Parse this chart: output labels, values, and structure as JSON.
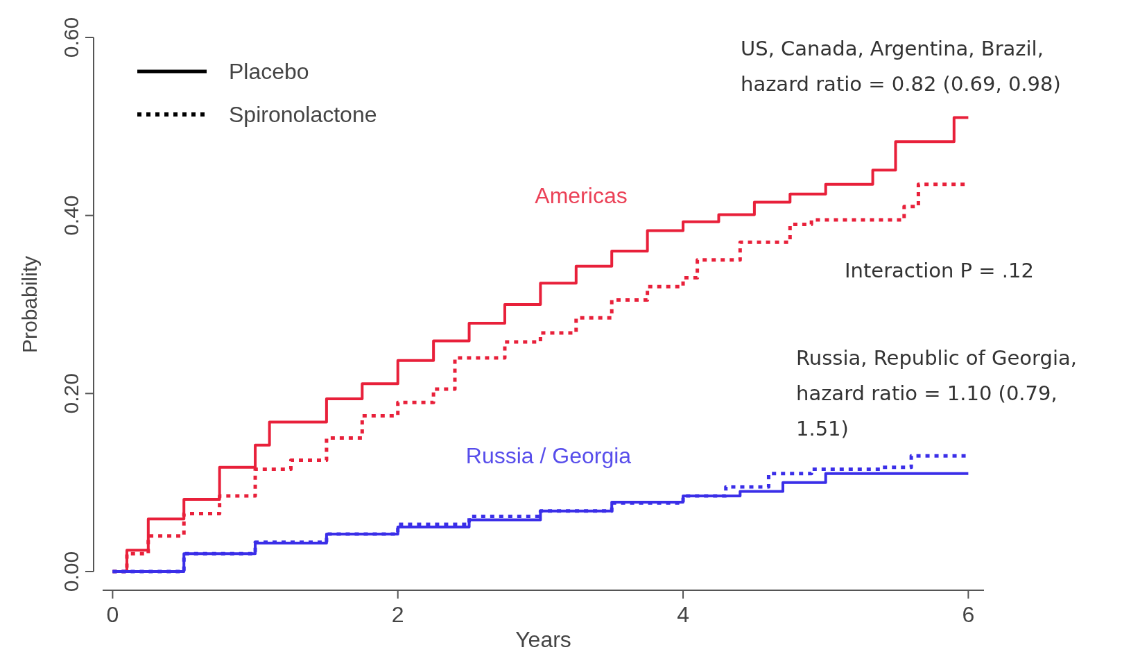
{
  "chart_data": {
    "type": "step",
    "xlabel": "Years",
    "ylabel": "Probability",
    "xlim": [
      -0.07,
      6.11
    ],
    "ylim": [
      0,
      0.6
    ],
    "xticks": [
      0,
      2,
      4,
      6
    ],
    "yticks": [
      {
        "value": 0,
        "label": "0.00"
      },
      {
        "value": 0.2,
        "label": "0.20"
      },
      {
        "value": 0.4,
        "label": "0.40"
      },
      {
        "value": 0.6,
        "label": "0.60"
      }
    ],
    "grid": false,
    "marker": "none",
    "series": [
      {
        "name": "Americas",
        "color": "#e8203a",
        "line_style": "solid",
        "x": [
          0,
          0.1,
          0.25,
          0.5,
          0.75,
          1.0,
          1.1,
          1.5,
          1.75,
          2.0,
          2.25,
          2.5,
          2.75,
          3.0,
          3.25,
          3.5,
          3.75,
          4.0,
          4.25,
          4.5,
          4.75,
          5.0,
          5.33,
          5.49,
          5.9,
          6.0
        ],
        "values": [
          0,
          0.024,
          0.059,
          0.081,
          0.117,
          0.142,
          0.168,
          0.194,
          0.211,
          0.237,
          0.259,
          0.279,
          0.3,
          0.324,
          0.343,
          0.36,
          0.383,
          0.393,
          0.401,
          0.415,
          0.424,
          0.435,
          0.451,
          0.483,
          0.51,
          0.51
        ]
      },
      {
        "color": "#e8203a",
        "line_style": "dotted",
        "x": [
          0,
          0.1,
          0.25,
          0.5,
          0.75,
          1.0,
          1.25,
          1.5,
          1.75,
          2.0,
          2.25,
          2.4,
          2.75,
          3.0,
          3.25,
          3.5,
          3.75,
          4.0,
          4.1,
          4.4,
          4.75,
          4.9,
          5.4,
          5.55,
          5.65,
          6.0
        ],
        "values": [
          0,
          0.02,
          0.04,
          0.065,
          0.085,
          0.115,
          0.125,
          0.15,
          0.175,
          0.19,
          0.205,
          0.24,
          0.258,
          0.268,
          0.285,
          0.305,
          0.32,
          0.33,
          0.35,
          0.37,
          0.39,
          0.395,
          0.395,
          0.41,
          0.435,
          0.435
        ]
      },
      {
        "name": "Russia / Georgia",
        "color": "#3a2ee8",
        "line_style": "solid",
        "x": [
          0,
          0.5,
          1.0,
          1.5,
          2.0,
          2.5,
          3.0,
          3.5,
          4.0,
          4.4,
          4.7,
          5.0,
          6.0
        ],
        "values": [
          0,
          0.02,
          0.032,
          0.042,
          0.05,
          0.058,
          0.068,
          0.078,
          0.085,
          0.09,
          0.1,
          0.11,
          0.11
        ]
      },
      {
        "color": "#3a2ee8",
        "line_style": "dotted",
        "x": [
          0,
          0.5,
          1.0,
          1.5,
          2.0,
          2.5,
          3.0,
          3.5,
          4.0,
          4.3,
          4.6,
          4.9,
          5.4,
          5.6,
          6.0
        ],
        "values": [
          0,
          0.02,
          0.033,
          0.042,
          0.053,
          0.062,
          0.068,
          0.077,
          0.085,
          0.095,
          0.11,
          0.115,
          0.117,
          0.13,
          0.13
        ]
      }
    ],
    "annotations": [
      "Placebo",
      "Spironolactone",
      "US, Canada, Argentina, Brazil,\nhazard ratio = 0.82 (0.69, 0.98)",
      "Interaction P = .12",
      "Russia, Republic of Georgia,\nhazard ratio = 1.10 (0.79,\n1.51)"
    ]
  }
}
